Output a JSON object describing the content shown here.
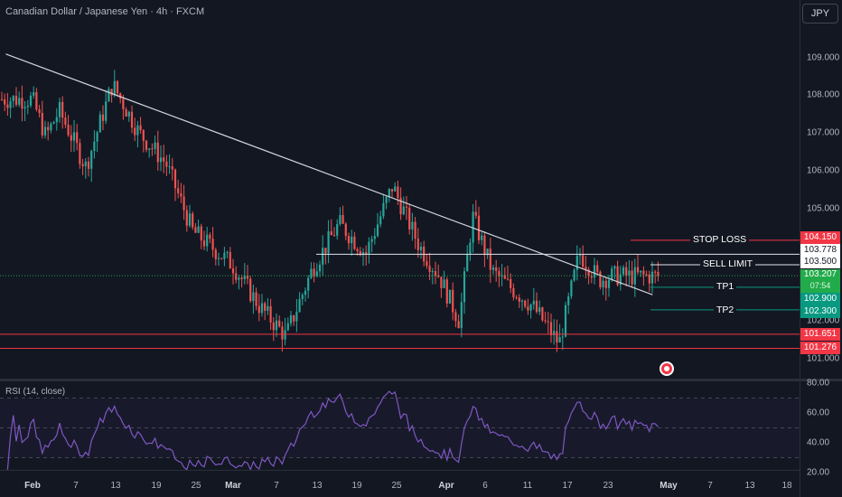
{
  "header": {
    "title": "Canadian Dollar / Japanese Yen · 4h · FXCM",
    "currency_button": "JPY"
  },
  "price_axis": {
    "ticks": [
      "109.000",
      "108.000",
      "107.000",
      "106.000",
      "105.000",
      "102.000",
      "101.000"
    ]
  },
  "rsi_axis": {
    "ticks": [
      "80.00",
      "60.00",
      "40.00",
      "20.00"
    ]
  },
  "rsi_panel": {
    "label": "RSI (14, close)"
  },
  "time_axis": {
    "labels": [
      "Feb",
      "7",
      "13",
      "19",
      "25",
      "Mar",
      "7",
      "13",
      "19",
      "25",
      "Apr",
      "6",
      "11",
      "17",
      "23",
      "May",
      "7",
      "13",
      "18"
    ]
  },
  "levels": {
    "stop_loss": {
      "label": "STOP LOSS",
      "tag": "104.150"
    },
    "resistance": {
      "tag": "103.778"
    },
    "sell_limit": {
      "label": "SELL LIMIT",
      "tag": "103.500"
    },
    "current": {
      "tag": "103.207",
      "sub": "07:54"
    },
    "tp1": {
      "label": "TP1",
      "tag": "102.900"
    },
    "tp2": {
      "label": "TP2",
      "tag": "102.300"
    },
    "support1": {
      "tag": "101.651"
    },
    "support2": {
      "tag": "101.276"
    }
  },
  "colors": {
    "background": "#131722",
    "up": "#26a69a",
    "down": "#ef5350",
    "rsi": "#7e57c2",
    "stop": "#f23645",
    "tp": "#089981",
    "trend": "#d1d4dc"
  },
  "chart_data": {
    "type": "candlestick",
    "title": "Canadian Dollar / Japanese Yen · 4h · FXCM",
    "ylim": [
      100.5,
      109.8
    ],
    "close_anchors": [
      {
        "t": "Feb 1",
        "close": 107.9
      },
      {
        "t": "Feb 3",
        "close": 106.9
      },
      {
        "t": "Feb 5",
        "close": 107.6
      },
      {
        "t": "Feb 9",
        "close": 106.1
      },
      {
        "t": "Feb 13",
        "close": 108.3
      },
      {
        "t": "Feb 17",
        "close": 107.0
      },
      {
        "t": "Feb 21",
        "close": 106.2
      },
      {
        "t": "Feb 25",
        "close": 104.4
      },
      {
        "t": "Mar 3",
        "close": 103.5
      },
      {
        "t": "Mar 7",
        "close": 102.4
      },
      {
        "t": "Mar 11",
        "close": 101.6
      },
      {
        "t": "Mar 15",
        "close": 103.4
      },
      {
        "t": "Mar 19",
        "close": 104.6
      },
      {
        "t": "Mar 23",
        "close": 103.8
      },
      {
        "t": "Mar 27",
        "close": 105.6
      },
      {
        "t": "Mar 31",
        "close": 104.0
      },
      {
        "t": "Apr 3",
        "close": 103.2
      },
      {
        "t": "Apr 6",
        "close": 102.0
      },
      {
        "t": "Apr 8",
        "close": 104.8
      },
      {
        "t": "Apr 11",
        "close": 103.3
      },
      {
        "t": "Apr 17",
        "close": 102.4
      },
      {
        "t": "Apr 21",
        "close": 101.4
      },
      {
        "t": "Apr 24",
        "close": 103.8
      },
      {
        "t": "Apr 27",
        "close": 103.1
      },
      {
        "t": "Apr 29",
        "close": 103.2
      }
    ],
    "trendline": [
      {
        "t": "Jan 28",
        "price": 109.1
      },
      {
        "t": "May 5",
        "price": 102.7
      }
    ],
    "horizontal_levels": [
      {
        "name": "STOP LOSS",
        "price": 104.15
      },
      {
        "name": "resistance",
        "price": 103.778
      },
      {
        "name": "SELL LIMIT",
        "price": 103.5
      },
      {
        "name": "current",
        "price": 103.207
      },
      {
        "name": "TP1",
        "price": 102.9
      },
      {
        "name": "TP2",
        "price": 102.3
      },
      {
        "name": "support",
        "price": 101.651
      },
      {
        "name": "support",
        "price": 101.276
      }
    ],
    "rsi": {
      "name": "RSI (14, close)",
      "period": 14,
      "levels": [
        70,
        50,
        30
      ],
      "ylim": [
        20,
        80
      ]
    }
  }
}
